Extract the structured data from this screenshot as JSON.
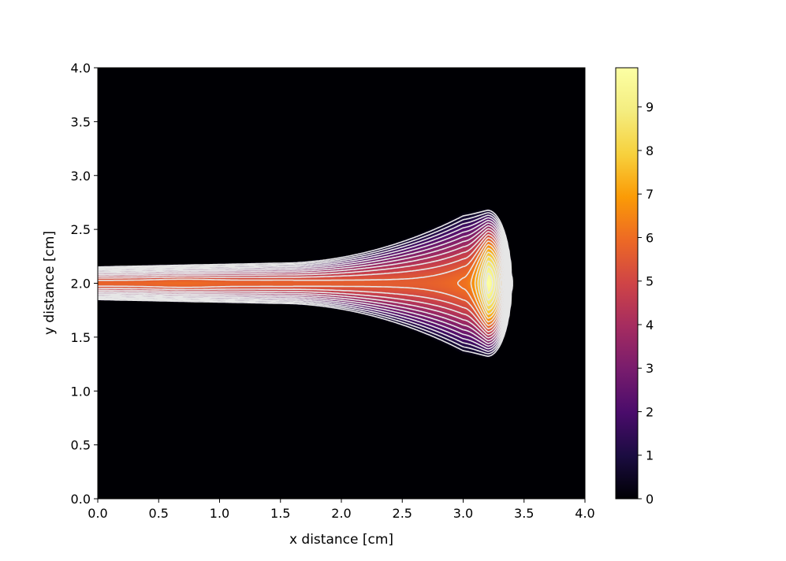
{
  "chart_data": {
    "type": "heatmap",
    "title": "",
    "xlabel": "x distance [cm]",
    "ylabel": "y distance [cm]",
    "xlim": [
      0.0,
      4.0
    ],
    "ylim": [
      0.0,
      4.0
    ],
    "x_ticks": [
      "0.0",
      "0.5",
      "1.0",
      "1.5",
      "2.0",
      "2.5",
      "3.0",
      "3.5",
      "4.0"
    ],
    "y_ticks": [
      "0.0",
      "0.5",
      "1.0",
      "1.5",
      "2.0",
      "2.5",
      "3.0",
      "3.5",
      "4.0"
    ],
    "colormap": "inferno",
    "colorbar": {
      "min": 0,
      "max": 9.9,
      "ticks": [
        "0",
        "1",
        "2",
        "3",
        "4",
        "5",
        "6",
        "7",
        "8",
        "9"
      ]
    },
    "contour_color": "#e6e6e6",
    "contour_levels": [
      0.5,
      1.0,
      1.5,
      2.0,
      2.5,
      3.0,
      3.5,
      4.0,
      4.5,
      5.0,
      5.5,
      6.0,
      6.5,
      7.0,
      7.5,
      8.0,
      8.5,
      9.0,
      9.5
    ],
    "field": {
      "description_points": [
        {
          "x": 0.0,
          "y": 2.0,
          "value": 5.8
        },
        {
          "x": 0.7,
          "y": 2.0,
          "value": 6.05
        },
        {
          "x": 1.5,
          "y": 2.0,
          "value": 5.9
        },
        {
          "x": 2.5,
          "y": 2.0,
          "value": 5.6
        },
        {
          "x": 3.2,
          "y": 2.0,
          "value": 9.9
        },
        {
          "x": 3.3,
          "y": 2.8,
          "value": 0.3
        }
      ]
    }
  }
}
